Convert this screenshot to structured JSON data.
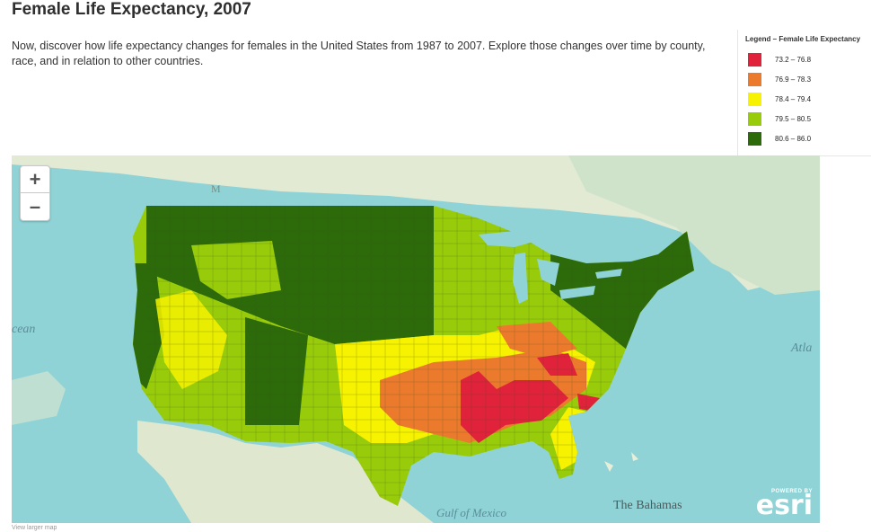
{
  "title": "Female Life Expectancy, 2007",
  "description": "Now, discover how life expectancy changes for females in the United States from 1987 to 2007. Explore those changes over time by county, race, and in relation to other countries.",
  "legend": {
    "title": "Legend – Female Life Expectancy",
    "items": [
      {
        "label": "73.2 – 76.8",
        "color": "#e0223a"
      },
      {
        "label": "76.9 – 78.3",
        "color": "#ec7a2c"
      },
      {
        "label": "78.4 – 79.4",
        "color": "#f6f200"
      },
      {
        "label": "79.5 – 80.5",
        "color": "#98cc0b"
      },
      {
        "label": "80.6 – 86.0",
        "color": "#2d6b0a"
      }
    ]
  },
  "map": {
    "zoom_in": "+",
    "zoom_out": "–",
    "labels": {
      "ocean": "cean",
      "atlantic": "Atla",
      "gulf": "Gulf of Mexico",
      "bahamas": "The Bahamas",
      "mexico_marker": "M"
    },
    "attribution_powered": "POWERED BY",
    "attribution_brand": "esri",
    "colors": {
      "water": "#8fd3d6",
      "land": "#e4ecd8"
    }
  },
  "footer": "View larger map"
}
